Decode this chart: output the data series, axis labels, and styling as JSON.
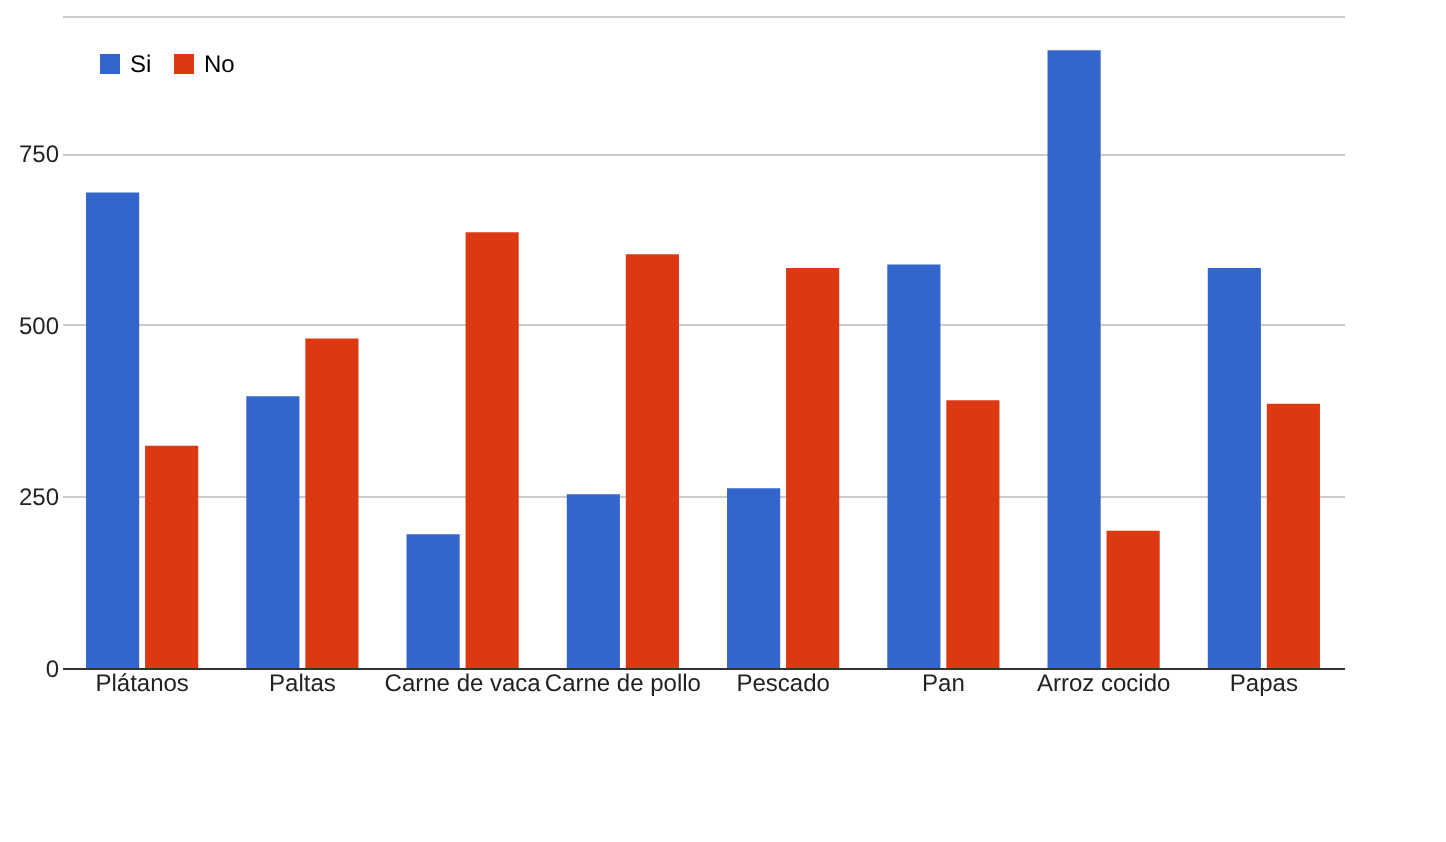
{
  "chart_data": {
    "type": "bar",
    "categories": [
      "Plátanos",
      "Paltas",
      "Carne de vaca",
      "Carne de pollo",
      "Pescado",
      "Pan",
      "Arroz cocido",
      "Papas"
    ],
    "series": [
      {
        "name": "Si",
        "color": "#3366cc",
        "values": [
          693,
          396,
          195,
          253,
          262,
          588,
          900,
          583
        ]
      },
      {
        "name": "No",
        "color": "#dc3912",
        "values": [
          324,
          480,
          635,
          603,
          583,
          390,
          200,
          385
        ]
      }
    ],
    "ylim": [
      0,
      950
    ],
    "yticks": [
      0,
      250,
      500,
      750,
      {
        "value": 950,
        "label": null
      }
    ],
    "grid": "y",
    "legend": "top left"
  }
}
